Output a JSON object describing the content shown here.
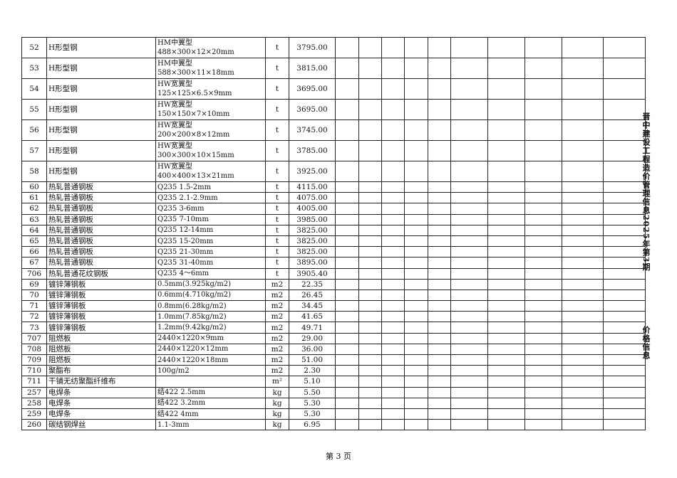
{
  "side_title": "晋中建设工程造价管理信息2025年第3期",
  "side_section": "价格信息",
  "footer": {
    "page_label": "第 3 页"
  },
  "empty_columns": 11,
  "rows": [
    {
      "no": "52",
      "name": "H形型钢",
      "spec": [
        "HM中翼型",
        "488×300×12×20mm"
      ],
      "unit": "t",
      "price": "3795.00"
    },
    {
      "no": "53",
      "name": "H形型钢",
      "spec": [
        "HM中翼型",
        "588×300×11×18mm"
      ],
      "unit": "t",
      "price": "3815.00"
    },
    {
      "no": "54",
      "name": "H形型钢",
      "spec": [
        "HW宽翼型",
        "125×125×6.5×9mm"
      ],
      "unit": "t",
      "price": "3695.00"
    },
    {
      "no": "55",
      "name": "H形型钢",
      "spec": [
        "HW宽翼型",
        "150×150×7×10mm"
      ],
      "unit": "t",
      "price": "3695.00"
    },
    {
      "no": "56",
      "name": "H形型钢",
      "spec": [
        "HW宽翼型",
        "200×200×8×12mm"
      ],
      "unit": "t",
      "price": "3745.00"
    },
    {
      "no": "57",
      "name": "H形型钢",
      "spec": [
        "HW宽翼型",
        "300×300×10×15mm"
      ],
      "unit": "t",
      "price": "3785.00"
    },
    {
      "no": "58",
      "name": "H形型钢",
      "spec": [
        "HW宽翼型",
        "400×400×13×21mm"
      ],
      "unit": "t",
      "price": "3925.00"
    },
    {
      "no": "60",
      "name": "热轧普通钢板",
      "spec": [
        "Q235 1.5-2mm"
      ],
      "unit": "t",
      "price": "4115.00"
    },
    {
      "no": "61",
      "name": "热轧普通钢板",
      "spec": [
        "Q235 2.1-2.9mm"
      ],
      "unit": "t",
      "price": "4075.00"
    },
    {
      "no": "62",
      "name": "热轧普通钢板",
      "spec": [
        "Q235 3-6mm"
      ],
      "unit": "t",
      "price": "4005.00"
    },
    {
      "no": "63",
      "name": "热轧普通钢板",
      "spec": [
        "Q235 7-10mm"
      ],
      "unit": "t",
      "price": "3985.00"
    },
    {
      "no": "64",
      "name": "热轧普通钢板",
      "spec": [
        "Q235 12-14mm"
      ],
      "unit": "t",
      "price": "3825.00"
    },
    {
      "no": "65",
      "name": "热轧普通钢板",
      "spec": [
        "Q235 15-20mm"
      ],
      "unit": "t",
      "price": "3825.00"
    },
    {
      "no": "66",
      "name": "热轧普通钢板",
      "spec": [
        "Q235 21-30mm"
      ],
      "unit": "t",
      "price": "3825.00"
    },
    {
      "no": "67",
      "name": "热轧普通钢板",
      "spec": [
        "Q235 31-40mm"
      ],
      "unit": "t",
      "price": "3895.00"
    },
    {
      "no": "706",
      "name": "热轧普通花纹钢板",
      "spec": [
        "Q235 4～6mm"
      ],
      "unit": "t",
      "price": "3905.40"
    },
    {
      "no": "69",
      "name": "镀锌薄钢板",
      "spec": [
        "0.5mm(3.925kg/m2)"
      ],
      "unit": "m2",
      "price": "22.35"
    },
    {
      "no": "70",
      "name": "镀锌薄钢板",
      "spec": [
        "0.6mm(4.710kg/m2)"
      ],
      "unit": "m2",
      "price": "26.45"
    },
    {
      "no": "71",
      "name": "镀锌薄钢板",
      "spec": [
        "0.8mm(6.28kg/m2)"
      ],
      "unit": "m2",
      "price": "34.45"
    },
    {
      "no": "72",
      "name": "镀锌薄钢板",
      "spec": [
        "1.0mm(7.85kg/m2)"
      ],
      "unit": "m2",
      "price": "41.65"
    },
    {
      "no": "73",
      "name": "镀锌薄钢板",
      "spec": [
        "1.2mm(9.42kg/m2)"
      ],
      "unit": "m2",
      "price": "49.71"
    },
    {
      "no": "707",
      "name": "阻燃板",
      "spec": [
        "2440×1220×9mm"
      ],
      "unit": "m2",
      "price": "29.00"
    },
    {
      "no": "708",
      "name": "阻燃板",
      "spec": [
        "2440×1220×12mm"
      ],
      "unit": "m2",
      "price": "36.00"
    },
    {
      "no": "709",
      "name": "阻燃板",
      "spec": [
        "2440×1220×18mm"
      ],
      "unit": "m2",
      "price": "51.00"
    },
    {
      "no": "710",
      "name": "聚酯布",
      "spec": [
        "100g/m2"
      ],
      "unit": "m2",
      "price": "2.30"
    },
    {
      "no": "711",
      "name": "干铺无纺聚酯纤维布",
      "spec": [
        ""
      ],
      "unit": "m²",
      "price": "5.10"
    },
    {
      "no": "257",
      "name": "电焊条",
      "spec": [
        "结422   2.5mm"
      ],
      "unit": "kg",
      "price": "5.50"
    },
    {
      "no": "258",
      "name": "电焊条",
      "spec": [
        "结422   3.2mm"
      ],
      "unit": "kg",
      "price": "5.30"
    },
    {
      "no": "259",
      "name": "电焊条",
      "spec": [
        "结422   4mm"
      ],
      "unit": "kg",
      "price": "5.30"
    },
    {
      "no": "260",
      "name": "碳结钢焊丝",
      "spec": [
        "1.1-3mm"
      ],
      "unit": "kg",
      "price": "6.95"
    }
  ]
}
